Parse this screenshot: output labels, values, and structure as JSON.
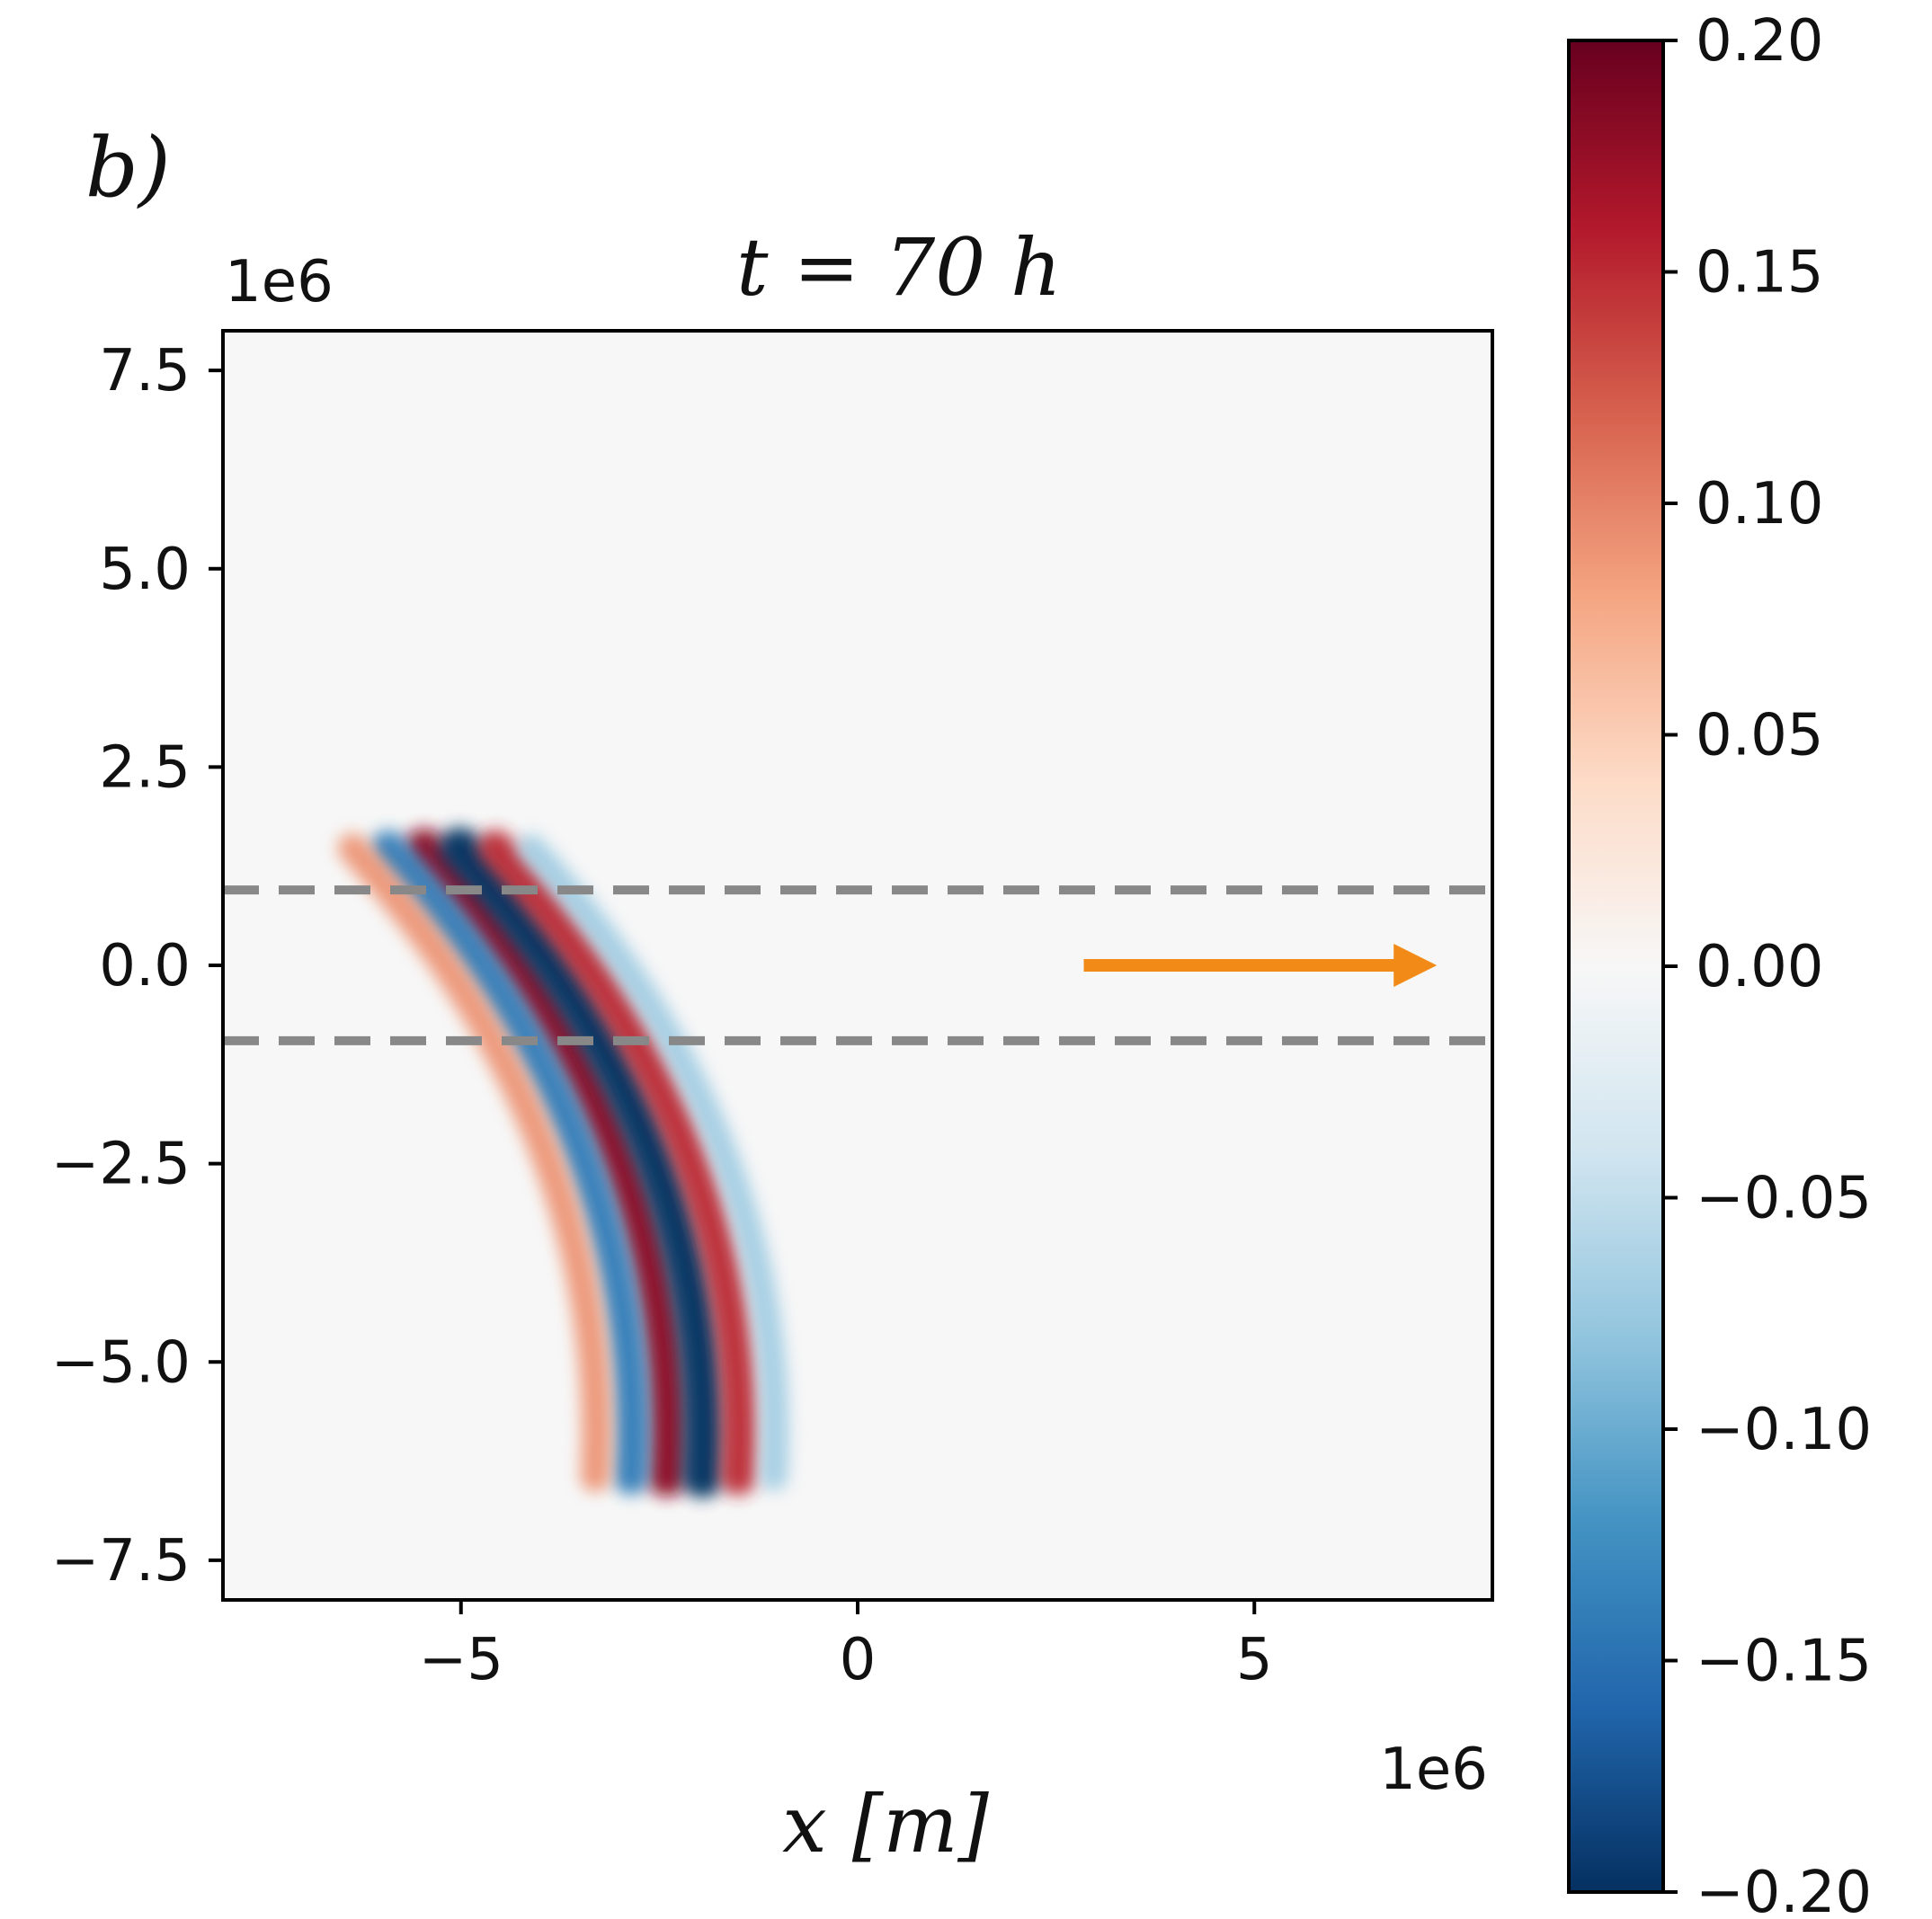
{
  "chart_data": {
    "type": "heatmap",
    "panel_label": "b)",
    "title": "t = 70 h",
    "xlabel": "x [m]",
    "ylabel": "",
    "x_offset_text": "1e6",
    "y_offset_text": "1e6",
    "xlim": [
      -8.0,
      8.0
    ],
    "ylim": [
      -8.0,
      8.0
    ],
    "x_scale": 1000000,
    "y_scale": 1000000,
    "xticks": [
      -5,
      0,
      5
    ],
    "xtick_labels": [
      "−5",
      "0",
      "5"
    ],
    "yticks": [
      -7.5,
      -5.0,
      -2.5,
      0.0,
      2.5,
      5.0,
      7.5
    ],
    "ytick_labels": [
      "−7.5",
      "−5.0",
      "−2.5",
      "0.0",
      "2.5",
      "5.0",
      "7.5"
    ],
    "background_value": 0.0,
    "field": {
      "description": "wave packet of curved bands",
      "bands": [
        {
          "x0": -3.2,
          "y0": -2.6,
          "value": 0.18
        },
        {
          "x0": -2.75,
          "y0": -2.6,
          "value": -0.2
        },
        {
          "x0": -2.3,
          "y0": -2.6,
          "value": 0.15
        },
        {
          "x0": -3.65,
          "y0": -2.6,
          "value": -0.14
        },
        {
          "x0": -1.85,
          "y0": -2.6,
          "value": -0.07
        },
        {
          "x0": -4.1,
          "y0": -2.6,
          "value": 0.09
        }
      ]
    },
    "horizontal_lines": [
      {
        "y": 0.95,
        "style": "dashed",
        "color": "#888888"
      },
      {
        "y": -0.95,
        "style": "dashed",
        "color": "#888888"
      }
    ],
    "arrow": {
      "x_start": 2.85,
      "x_end": 7.3,
      "y": 0.0,
      "color": "#f28a17"
    },
    "colorbar": {
      "cmap": "RdBu_r",
      "vmin": -0.2,
      "vmax": 0.2,
      "ticks": [
        0.2,
        0.15,
        0.1,
        0.05,
        0.0,
        -0.05,
        -0.1,
        -0.15,
        -0.2
      ],
      "tick_labels": [
        "0.20",
        "0.15",
        "0.10",
        "0.05",
        "0.00",
        "−0.05",
        "−0.10",
        "−0.15",
        "−0.20"
      ],
      "colors": [
        "#67001f",
        "#b2182b",
        "#d6604d",
        "#f4a582",
        "#fddbc7",
        "#f7f7f7",
        "#d1e5f0",
        "#92c5de",
        "#4393c3",
        "#2166ac",
        "#053061"
      ]
    }
  }
}
